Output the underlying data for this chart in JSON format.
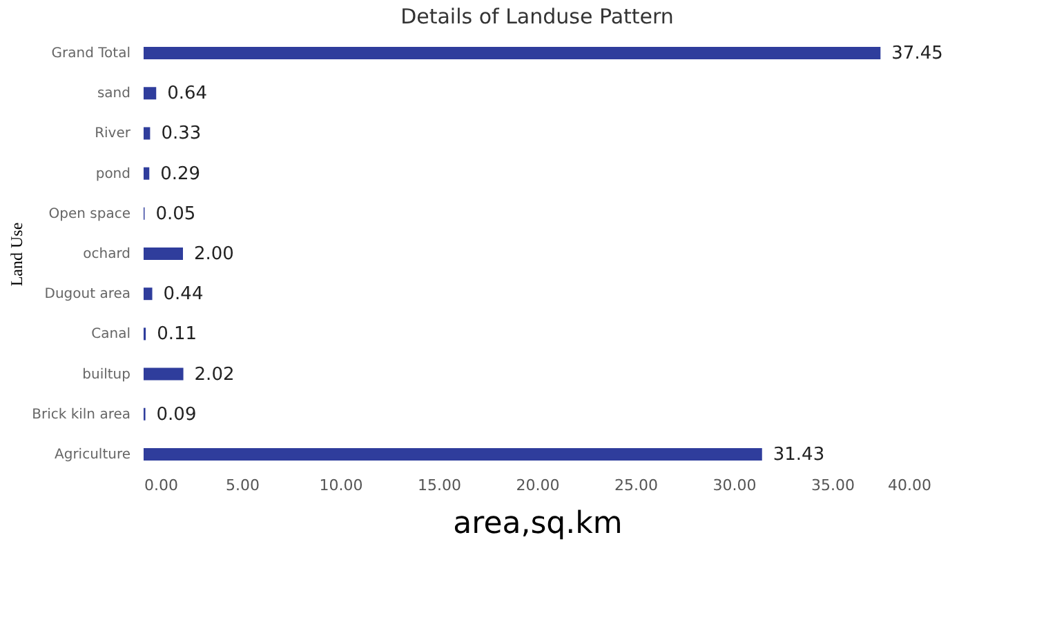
{
  "chart_data": {
    "type": "bar",
    "orientation": "horizontal",
    "title": "Details of Landuse Pattern",
    "xlabel": "area,sq.km",
    "ylabel": "Land Use",
    "categories": [
      "Grand Total",
      "sand",
      "River",
      "pond",
      "Open space",
      "ochard",
      "Dugout area",
      "Canal",
      "builtup",
      "Brick kiln area",
      "Agriculture"
    ],
    "values": [
      37.45,
      0.64,
      0.33,
      0.29,
      0.05,
      2.0,
      0.44,
      0.11,
      2.02,
      0.09,
      31.43
    ],
    "value_labels": [
      "37.45",
      "0.64",
      "0.33",
      "0.29",
      "0.05",
      "2.00",
      "0.44",
      "0.11",
      "2.02",
      "0.09",
      "31.43"
    ],
    "color": "#2f3d9c",
    "xlim": [
      0,
      40
    ],
    "xticks": [
      {
        "value": 0,
        "label": "0.00"
      },
      {
        "value": 5,
        "label": "5.00"
      },
      {
        "value": 10,
        "label": "10.00"
      },
      {
        "value": 15,
        "label": "15.00"
      },
      {
        "value": 20,
        "label": "20.00"
      },
      {
        "value": 25,
        "label": "25.00"
      },
      {
        "value": 30,
        "label": "30.00"
      },
      {
        "value": 35,
        "label": "35.00"
      },
      {
        "value": 40,
        "label": "40.00"
      }
    ],
    "grid": false
  }
}
